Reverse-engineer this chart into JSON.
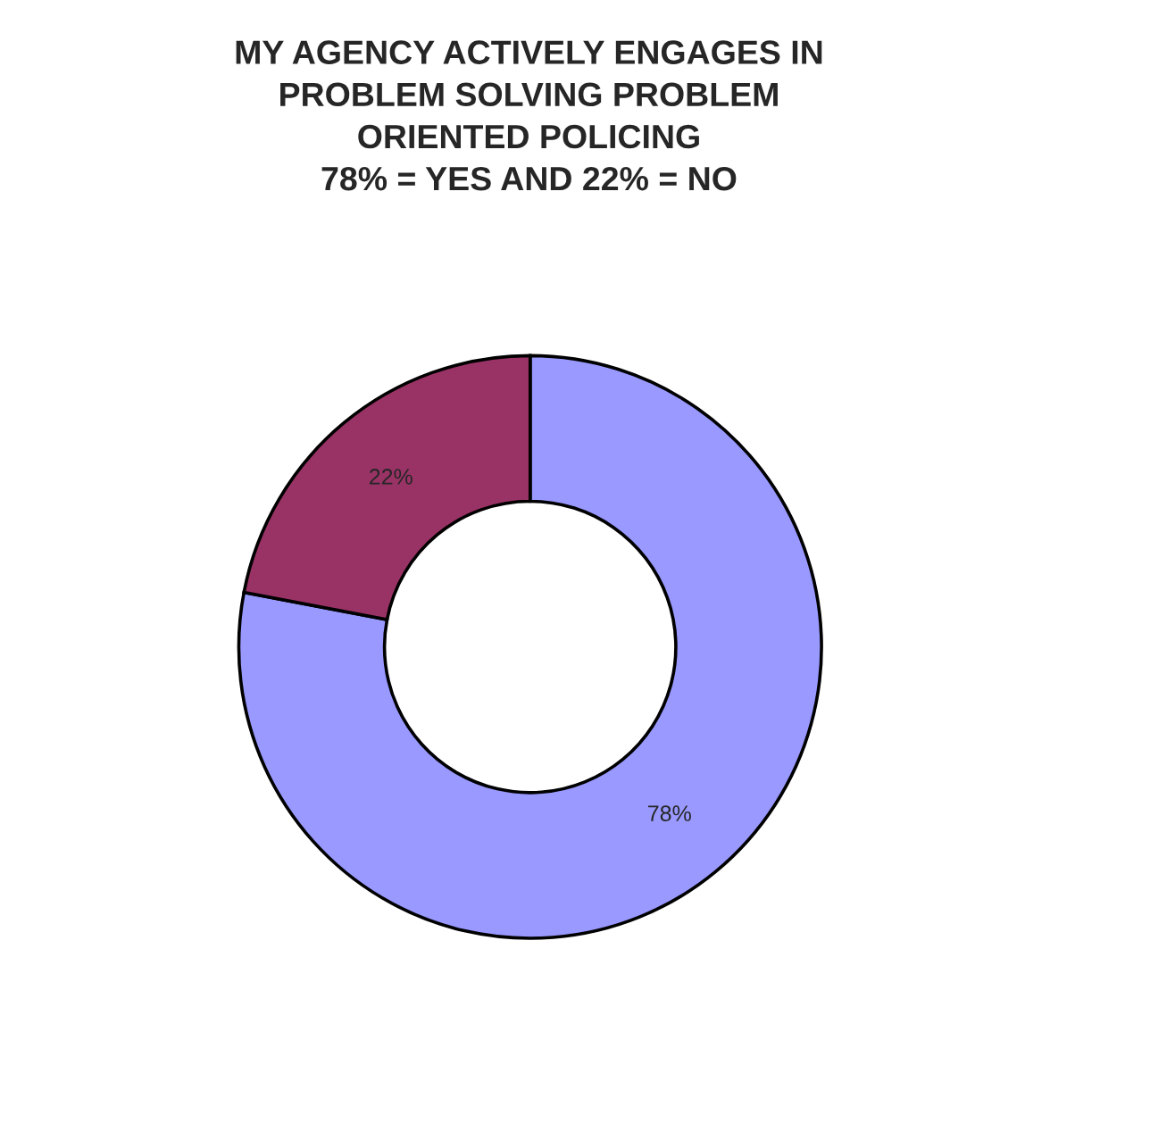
{
  "chart_data": {
    "type": "donut",
    "title": "MY AGENCY ACTIVELY ENGAGES IN\nPROBLEM SOLVING PROBLEM\nORIENTED POLICING\n78% = YES AND 22% = NO",
    "categories": [
      null,
      null
    ],
    "values": [
      78,
      22
    ],
    "colors": [
      "#9999ff",
      "#993366"
    ],
    "value_labels": [
      "78%",
      "22%"
    ]
  }
}
